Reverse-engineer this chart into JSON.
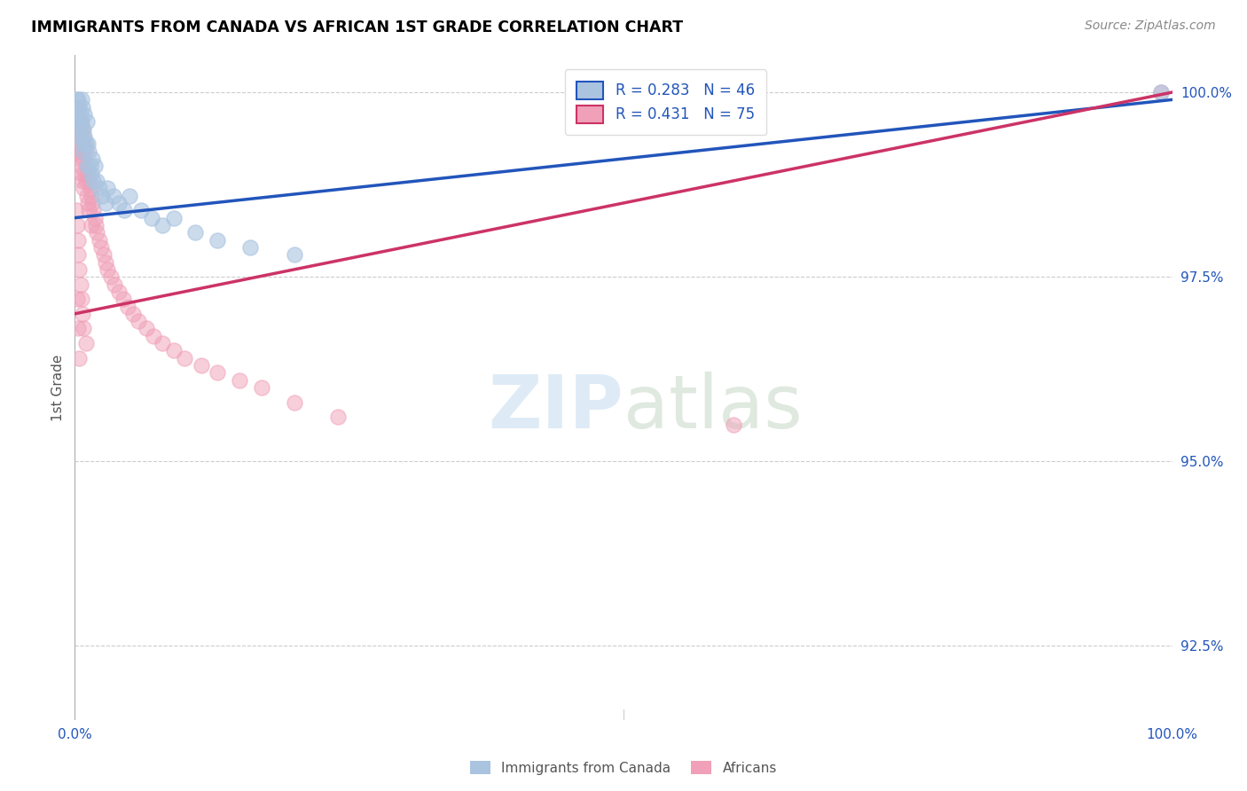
{
  "title": "IMMIGRANTS FROM CANADA VS AFRICAN 1ST GRADE CORRELATION CHART",
  "source": "Source: ZipAtlas.com",
  "ylabel": "1st Grade",
  "xlim": [
    0.0,
    1.0
  ],
  "ylim": [
    0.915,
    1.005
  ],
  "yticks": [
    0.925,
    0.95,
    0.975,
    1.0
  ],
  "ytick_labels": [
    "92.5%",
    "95.0%",
    "97.5%",
    "100.0%"
  ],
  "xtick_labels": [
    "0.0%",
    "100.0%"
  ],
  "legend_labels": [
    "Immigrants from Canada",
    "Africans"
  ],
  "canada_color": "#aac4e0",
  "african_color": "#f0a0b8",
  "canada_line_color": "#2255bb",
  "african_line_color": "#cc3366",
  "canada_R": 0.283,
  "canada_N": 46,
  "african_R": 0.431,
  "african_N": 75,
  "background_color": "#ffffff",
  "canada_line_start_y": 0.983,
  "canada_line_end_y": 0.999,
  "african_line_start_y": 0.97,
  "african_line_end_y": 1.0,
  "canada_x": [
    0.001,
    0.002,
    0.002,
    0.003,
    0.003,
    0.004,
    0.004,
    0.005,
    0.005,
    0.006,
    0.006,
    0.007,
    0.007,
    0.008,
    0.008,
    0.009,
    0.009,
    0.01,
    0.011,
    0.011,
    0.012,
    0.013,
    0.014,
    0.015,
    0.016,
    0.017,
    0.018,
    0.02,
    0.022,
    0.025,
    0.028,
    0.03,
    0.035,
    0.04,
    0.045,
    0.05,
    0.06,
    0.07,
    0.08,
    0.09,
    0.11,
    0.13,
    0.16,
    0.2,
    0.001,
    0.99
  ],
  "canada_y": [
    0.999,
    0.998,
    0.997,
    0.999,
    0.996,
    0.998,
    0.995,
    0.997,
    0.994,
    0.999,
    0.996,
    0.993,
    0.998,
    0.995,
    0.992,
    0.997,
    0.994,
    0.993,
    0.996,
    0.99,
    0.993,
    0.992,
    0.99,
    0.989,
    0.991,
    0.988,
    0.99,
    0.988,
    0.987,
    0.986,
    0.985,
    0.987,
    0.986,
    0.985,
    0.984,
    0.986,
    0.984,
    0.983,
    0.982,
    0.983,
    0.981,
    0.98,
    0.979,
    0.978,
    0.997,
    1.0
  ],
  "african_x": [
    0.001,
    0.001,
    0.002,
    0.002,
    0.003,
    0.003,
    0.004,
    0.004,
    0.005,
    0.005,
    0.005,
    0.006,
    0.006,
    0.007,
    0.007,
    0.007,
    0.008,
    0.008,
    0.008,
    0.009,
    0.009,
    0.01,
    0.01,
    0.011,
    0.011,
    0.012,
    0.012,
    0.013,
    0.013,
    0.014,
    0.015,
    0.015,
    0.016,
    0.017,
    0.018,
    0.019,
    0.02,
    0.022,
    0.024,
    0.026,
    0.028,
    0.03,
    0.033,
    0.036,
    0.04,
    0.044,
    0.048,
    0.053,
    0.058,
    0.065,
    0.072,
    0.08,
    0.09,
    0.1,
    0.115,
    0.13,
    0.15,
    0.17,
    0.2,
    0.24,
    0.001,
    0.002,
    0.003,
    0.003,
    0.004,
    0.005,
    0.006,
    0.007,
    0.008,
    0.01,
    0.002,
    0.003,
    0.004,
    0.6,
    0.99
  ],
  "african_y": [
    0.998,
    0.994,
    0.997,
    0.993,
    0.996,
    0.992,
    0.995,
    0.991,
    0.994,
    0.99,
    0.996,
    0.993,
    0.989,
    0.995,
    0.992,
    0.988,
    0.994,
    0.991,
    0.987,
    0.993,
    0.989,
    0.992,
    0.988,
    0.99,
    0.986,
    0.989,
    0.985,
    0.988,
    0.984,
    0.987,
    0.986,
    0.982,
    0.985,
    0.984,
    0.983,
    0.982,
    0.981,
    0.98,
    0.979,
    0.978,
    0.977,
    0.976,
    0.975,
    0.974,
    0.973,
    0.972,
    0.971,
    0.97,
    0.969,
    0.968,
    0.967,
    0.966,
    0.965,
    0.964,
    0.963,
    0.962,
    0.961,
    0.96,
    0.958,
    0.956,
    0.984,
    0.982,
    0.98,
    0.978,
    0.976,
    0.974,
    0.972,
    0.97,
    0.968,
    0.966,
    0.972,
    0.968,
    0.964,
    0.955,
    1.0
  ]
}
